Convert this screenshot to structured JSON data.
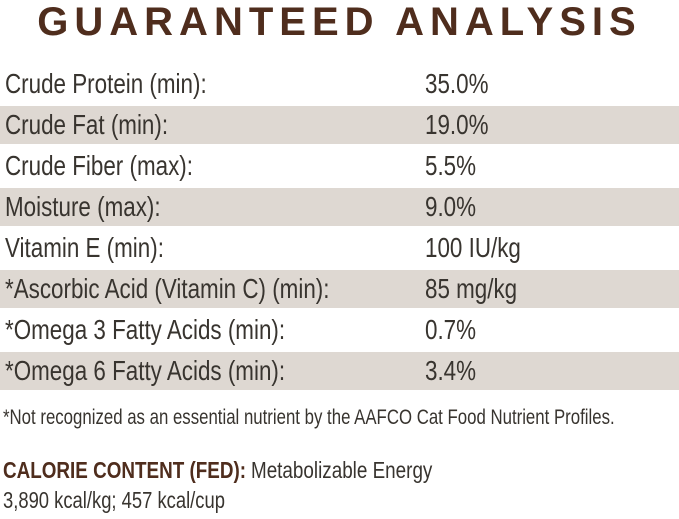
{
  "title": "GUARANTEED ANALYSIS",
  "colors": {
    "heading_brown": "#4f2d1d",
    "stripe_beige": "#ded8d2",
    "body_text": "#38342f",
    "background": "#ffffff"
  },
  "table": {
    "rows": [
      {
        "label": "Crude Protein (min):",
        "value": "35.0%"
      },
      {
        "label": "Crude Fat (min):",
        "value": "19.0%"
      },
      {
        "label": "Crude Fiber (max):",
        "value": "5.5%"
      },
      {
        "label": "Moisture (max):",
        "value": "9.0%"
      },
      {
        "label": "Vitamin E (min):",
        "value": "100 IU/kg"
      },
      {
        "label": "*Ascorbic Acid (Vitamin C) (min):",
        "value": "85 mg/kg"
      },
      {
        "label": "*Omega 3 Fatty Acids (min):",
        "value": "0.7%"
      },
      {
        "label": "*Omega 6 Fatty Acids (min):",
        "value": "3.4%"
      }
    ]
  },
  "footnote": "*Not recognized as an essential nutrient by the AAFCO Cat Food Nutrient Profiles.",
  "calorie_content": {
    "label": "CALORIE CONTENT (FED):",
    "description": "Metabolizable Energy",
    "values": "3,890 kcal/kg; 457 kcal/cup"
  }
}
